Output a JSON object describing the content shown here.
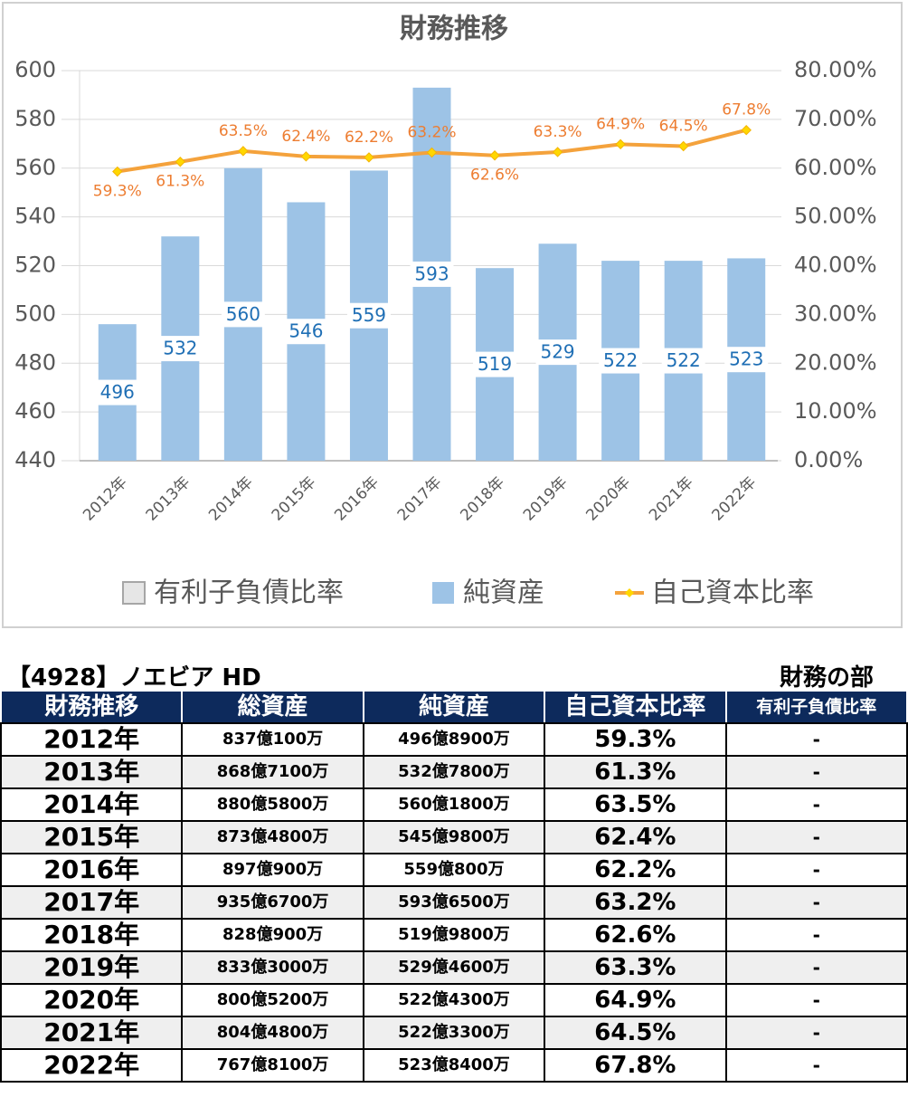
{
  "chart_data": {
    "type": "bar",
    "title": "財務推移",
    "categories": [
      "2012年",
      "2013年",
      "2014年",
      "2015年",
      "2016年",
      "2017年",
      "2018年",
      "2019年",
      "2020年",
      "2021年",
      "2022年"
    ],
    "series": [
      {
        "name": "有利子負債比率",
        "color": "#e6e6e6",
        "values": [
          null,
          null,
          null,
          null,
          null,
          null,
          null,
          null,
          null,
          null,
          null
        ]
      },
      {
        "name": "純資産",
        "color": "#9dc3e6",
        "values": [
          496,
          532,
          560,
          546,
          559,
          593,
          519,
          529,
          522,
          522,
          523
        ]
      },
      {
        "name": "自己資本比率",
        "color": "#f4a23c",
        "axis": "y2",
        "values": [
          59.3,
          61.3,
          63.5,
          62.4,
          62.2,
          63.2,
          62.6,
          63.3,
          64.9,
          64.5,
          67.8
        ],
        "value_labels": [
          "59.3%",
          "61.3%",
          "63.5%",
          "62.4%",
          "62.2%",
          "63.2%",
          "62.6%",
          "63.3%",
          "64.9%",
          "64.5%",
          "67.8%"
        ]
      }
    ],
    "ylim": [
      440,
      600
    ],
    "yticks": [
      440,
      460,
      480,
      500,
      520,
      540,
      560,
      580,
      600
    ],
    "y2lim": [
      0,
      80
    ],
    "y2ticks": [
      {
        "value": 0,
        "label": "0.00%"
      },
      {
        "value": 10,
        "label": "10.00%"
      },
      {
        "value": 20,
        "label": "20.00%"
      },
      {
        "value": 30,
        "label": "30.00%"
      },
      {
        "value": 40,
        "label": "40.00%"
      },
      {
        "value": 50,
        "label": "50.00%"
      },
      {
        "value": 60,
        "label": "60.00%"
      },
      {
        "value": 70,
        "label": "70.00%"
      },
      {
        "value": 80,
        "label": "80.00%"
      }
    ],
    "grid": true,
    "legend": "bottom"
  },
  "table": {
    "title": "【4928】ノエビア HD",
    "section": "財務の部",
    "columns": [
      "財務推移",
      "総資産",
      "純資産",
      "自己資本比率",
      "有利子負債比率"
    ],
    "rows": [
      [
        "2012年",
        "837億100万",
        "496億8900万",
        "59.3%",
        "-"
      ],
      [
        "2013年",
        "868億7100万",
        "532億7800万",
        "61.3%",
        "-"
      ],
      [
        "2014年",
        "880億5800万",
        "560億1800万",
        "63.5%",
        "-"
      ],
      [
        "2015年",
        "873億4800万",
        "545億9800万",
        "62.4%",
        "-"
      ],
      [
        "2016年",
        "897億900万",
        "559億800万",
        "62.2%",
        "-"
      ],
      [
        "2017年",
        "935億6700万",
        "593億6500万",
        "63.2%",
        "-"
      ],
      [
        "2018年",
        "828億900万",
        "519億9800万",
        "62.6%",
        "-"
      ],
      [
        "2019年",
        "833億3000万",
        "529億4600万",
        "63.3%",
        "-"
      ],
      [
        "2020年",
        "800億5200万",
        "522億4300万",
        "64.9%",
        "-"
      ],
      [
        "2021年",
        "804億4800万",
        "522億3300万",
        "64.5%",
        "-"
      ],
      [
        "2022年",
        "767億8100万",
        "523億8400万",
        "67.8%",
        "-"
      ]
    ]
  }
}
